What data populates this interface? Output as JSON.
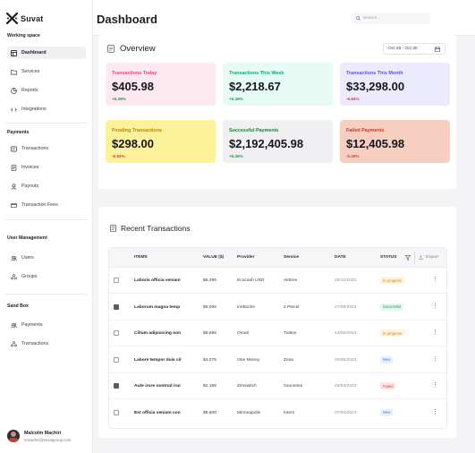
{
  "brand": {
    "name": "Suvat"
  },
  "sidebar": {
    "workspace_title": "Working space",
    "workspace_items": [
      {
        "label": "Dashboard",
        "icon": "dashboard-icon",
        "active": true
      },
      {
        "label": "Services",
        "icon": "folder-icon"
      },
      {
        "label": "Reports",
        "icon": "chart-pie-icon"
      },
      {
        "label": "Integrations",
        "icon": "code-icon"
      }
    ],
    "payments_title": "Payments",
    "payments_items": [
      {
        "label": "Transactions",
        "icon": "transactions-icon"
      },
      {
        "label": "Invoices",
        "icon": "invoice-icon"
      },
      {
        "label": "Payouts",
        "icon": "payout-icon"
      },
      {
        "label": "Transaction Fees",
        "icon": "fees-icon"
      }
    ],
    "users_title": "User Management",
    "users_items": [
      {
        "label": "Users",
        "icon": "users-icon"
      },
      {
        "label": "Groups",
        "icon": "groups-icon"
      }
    ],
    "sandbox_title": "Sand Box",
    "sandbox_items": [
      {
        "label": "Payments",
        "icon": "payments-icon"
      },
      {
        "label": "Transactions",
        "icon": "transactions-icon"
      }
    ],
    "profile": {
      "name": "Malcolm Machiri",
      "email": "mmachiri@suvatgroup.com"
    }
  },
  "header": {
    "title": "Dashboard",
    "search_placeholder": "Search..."
  },
  "overview": {
    "title": "Overview",
    "date_range": "Oct 25 - Oct 30",
    "cards": [
      {
        "title": "Transactions Today",
        "value": "$405.98",
        "change": "+5.39%",
        "bg": "#fde9ef",
        "title_color": "#e0457b",
        "change_color": "#1e9b4f"
      },
      {
        "title": "Transactions This Week",
        "value": "$2,218.67",
        "change": "+5.39%",
        "bg": "#e6fbf4",
        "title_color": "#14a77d",
        "change_color": "#1e9b4f"
      },
      {
        "title": "Transactions This Month",
        "value": "$33,298.00",
        "change": "-6.84%",
        "bg": "#ecebfd",
        "title_color": "#5b55d6",
        "change_color": "#e03c3c"
      },
      {
        "title": "Pending Transactions",
        "value": "$298.00",
        "change": "-6.84%",
        "bg": "#fdf19a",
        "title_color": "#b8860b",
        "change_color": "#e03c3c"
      },
      {
        "title": "Successful Payments",
        "value": "$2,192,405.98",
        "change": "+5.39%",
        "bg": "#f0f0f3",
        "title_color": "#1f7a3c",
        "change_color": "#1e9b4f"
      },
      {
        "title": "Failed Payments",
        "value": "$12,405.98",
        "change": "-5.39%",
        "bg": "#f6cfc0",
        "title_color": "#c0392b",
        "change_color": "#e03c3c"
      }
    ]
  },
  "recent": {
    "title": "Recent Transactions",
    "columns": {
      "items": "ITEMS",
      "value": "VALUE ($)",
      "provider": "Provider",
      "service": "Service",
      "date": "DATE",
      "status": "STATUS",
      "export": "Export"
    },
    "rows": [
      {
        "item": "Laboris officia veniam",
        "value": "$6,496",
        "provider": "Ecocash USD",
        "service": "Airtime",
        "date": "25/11/2023",
        "status": "In progress",
        "checked": false
      },
      {
        "item": "Laborum magna temp",
        "value": "$6,006",
        "provider": "innBucks",
        "service": "2 Piecer",
        "date": "27/08/2023",
        "status": "Successful",
        "checked": true
      },
      {
        "item": "Cillum adipisicing non",
        "value": "$9,698",
        "provider": "Omari",
        "service": "Tuition",
        "date": "14/05/2023",
        "status": "In progress",
        "checked": false
      },
      {
        "item": "Labore tempor duis cil",
        "value": "$4,075",
        "provider": "One Money",
        "service": "Zesa",
        "date": "30/06/2023",
        "status": "New",
        "checked": false
      },
      {
        "item": "Aute irure nostrud irur",
        "value": "$2,189",
        "provider": "Zimswitch",
        "service": "Groceries",
        "date": "29/03/2023",
        "status": "Failed",
        "checked": true
      },
      {
        "item": "Est officia veniam con",
        "value": "$8,600",
        "provider": "Minneapolis",
        "service": "lorem",
        "date": "07/04/2023",
        "status": "New",
        "checked": false
      }
    ]
  },
  "status_styles": {
    "In progress": {
      "bg": "#fff3dc",
      "fg": "#c98a12"
    },
    "Successful": {
      "bg": "#e3f7ea",
      "fg": "#1e9b4f"
    },
    "New": {
      "bg": "#e6f0fd",
      "fg": "#3b7be0"
    },
    "Failed": {
      "bg": "#fde6e6",
      "fg": "#e03c3c"
    }
  }
}
